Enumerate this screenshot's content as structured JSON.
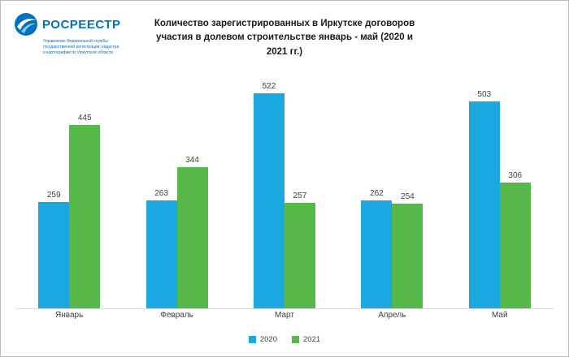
{
  "logo": {
    "brand": "РОСРЕЕСТР",
    "subtext": "Управление Федеральной службы государственной регистрации, кадастра и картографии по Иркутской области",
    "brand_color": "#0072bc"
  },
  "chart_data": {
    "type": "bar",
    "title": "Количество зарегистрированных в Иркутске договоров участия в долевом строительстве январь - май (2020 и 2021 гг.)",
    "categories": [
      "Январь",
      "Февраль",
      "Март",
      "Апрель",
      "Май"
    ],
    "series": [
      {
        "name": "2020",
        "color": "#1ba7e0",
        "values": [
          259,
          263,
          522,
          262,
          503
        ]
      },
      {
        "name": "2021",
        "color": "#55b848",
        "values": [
          445,
          344,
          257,
          254,
          306
        ]
      }
    ],
    "ylim": [
      0,
      560
    ],
    "grid": false,
    "legend_position": "bottom",
    "data_labels": true
  }
}
